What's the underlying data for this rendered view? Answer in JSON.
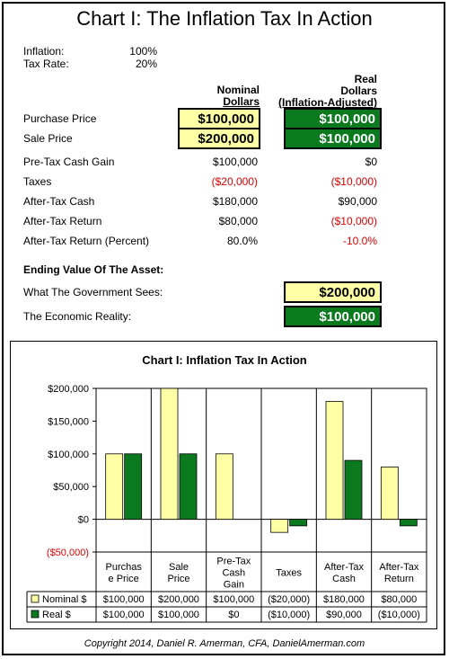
{
  "title": "Chart I:    The Inflation Tax In Action",
  "params": [
    {
      "label": "Inflation:",
      "value": "100%"
    },
    {
      "label": "Tax Rate:",
      "value": "20%"
    }
  ],
  "headers": {
    "nominal": [
      "Nominal",
      "Dollars"
    ],
    "real": [
      "Real",
      "Dollars",
      "(Inflation-Adjusted)"
    ]
  },
  "table_rows": [
    {
      "label": "Purchase Price",
      "nominal": "$100,000",
      "real": "$100,000",
      "style": "box"
    },
    {
      "label": "Sale Price",
      "nominal": "$200,000",
      "real": "$100,000",
      "style": "box"
    },
    {
      "label": "Pre-Tax Cash Gain",
      "nominal": "$100,000",
      "real": "$0"
    },
    {
      "label": "Taxes",
      "nominal": "($20,000)",
      "real": "($10,000)",
      "nominal_neg": true,
      "real_neg": true
    },
    {
      "label": "After-Tax Cash",
      "nominal": "$180,000",
      "real": "$90,000"
    },
    {
      "label": "After-Tax Return",
      "nominal": "$80,000",
      "real": "($10,000)",
      "real_neg": true
    },
    {
      "label": "After-Tax Return (Percent)",
      "nominal": "80.0%",
      "real": "-10.0%",
      "real_neg": true
    }
  ],
  "ending": {
    "heading": "Ending Value Of The Asset:",
    "government_label": "What The Government Sees:",
    "government_value": "$200,000",
    "reality_label": "The Economic Reality:",
    "reality_value": "$100,000"
  },
  "colors": {
    "nominal": "#ffffa6",
    "real": "#0b7a1f",
    "negative": "#e00000"
  },
  "chart_data": {
    "type": "bar",
    "title": "Chart I:  Inflation Tax In Action",
    "categories": [
      [
        "Purchas",
        "e Price"
      ],
      [
        "Sale",
        "Price"
      ],
      [
        "Pre-Tax",
        "Cash",
        "Gain"
      ],
      [
        "Taxes"
      ],
      [
        "After-Tax",
        "Cash"
      ],
      [
        "After-Tax",
        "Return"
      ]
    ],
    "series": [
      {
        "name": "Nominal $",
        "values": [
          100000,
          200000,
          100000,
          -20000,
          180000,
          80000
        ],
        "labels": [
          "$100,000",
          "$200,000",
          "$100,000",
          "($20,000)",
          "$180,000",
          "$80,000"
        ]
      },
      {
        "name": "Real $",
        "values": [
          100000,
          100000,
          0,
          -10000,
          90000,
          -10000
        ],
        "labels": [
          "$100,000",
          "$100,000",
          "$0",
          "($10,000)",
          "$90,000",
          "($10,000)"
        ]
      }
    ],
    "ylim": [
      -50000,
      200000
    ],
    "yticks": [
      {
        "v": 200000,
        "label": "$200,000"
      },
      {
        "v": 150000,
        "label": "$150,000"
      },
      {
        "v": 100000,
        "label": "$100,000"
      },
      {
        "v": 50000,
        "label": "$50,000"
      },
      {
        "v": 0,
        "label": "$0"
      },
      {
        "v": -50000,
        "label": "($50,000)",
        "neg": true
      }
    ],
    "grid": false,
    "legend": "data-table"
  },
  "footer": "Copyright 2014, Daniel R. Amerman, CFA, DanielAmerman.com"
}
